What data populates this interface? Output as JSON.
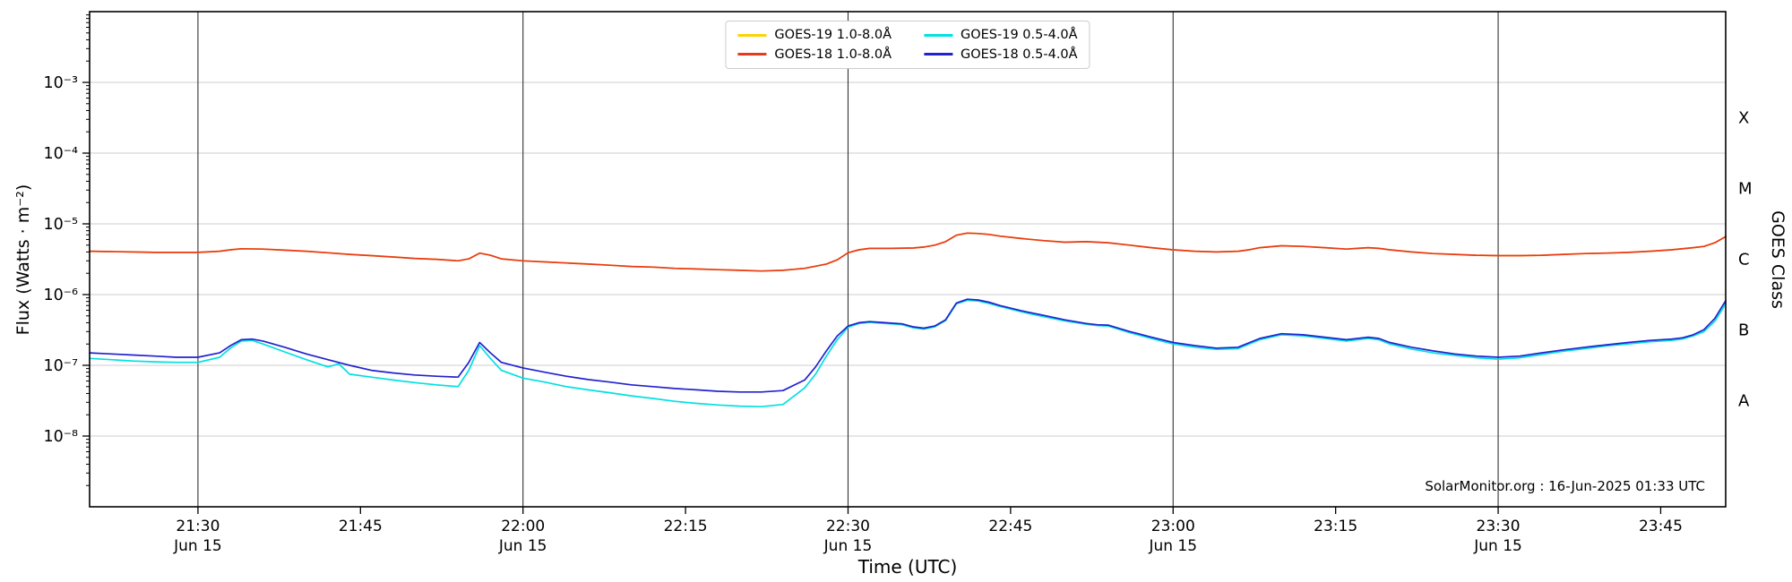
{
  "attribution": "SolarMonitor.org : 16-Jun-2025 01:33 UTC",
  "chart_data": {
    "type": "line",
    "xlabel": "Time (UTC)",
    "ylabel": "Flux (Watts · m⁻²)",
    "ylabel_right": "GOES Class",
    "x_unit": "minutes after 21:20 UTC, Jun 15",
    "x_range_minutes": [
      0,
      151
    ],
    "y_exponent_range": [
      -9,
      -2
    ],
    "y_scale": "log",
    "grid": "horizontal decade lines + vertical half-hour lines",
    "legend_position": "top center",
    "y_ticks": [
      {
        "exp": -3,
        "label": "10⁻³"
      },
      {
        "exp": -4,
        "label": "10⁻⁴"
      },
      {
        "exp": -5,
        "label": "10⁻⁵"
      },
      {
        "exp": -6,
        "label": "10⁻⁶"
      },
      {
        "exp": -7,
        "label": "10⁻⁷"
      },
      {
        "exp": -8,
        "label": "10⁻⁸"
      }
    ],
    "goes_class_labels": [
      {
        "label": "X",
        "exp": -3.5
      },
      {
        "label": "M",
        "exp": -4.5
      },
      {
        "label": "C",
        "exp": -5.5
      },
      {
        "label": "B",
        "exp": -6.5
      },
      {
        "label": "A",
        "exp": -7.5
      }
    ],
    "x_ticks": [
      {
        "t": 10,
        "label": "21:30",
        "date": "Jun 15"
      },
      {
        "t": 25,
        "label": "21:45"
      },
      {
        "t": 40,
        "label": "22:00",
        "date": "Jun 15"
      },
      {
        "t": 55,
        "label": "22:15"
      },
      {
        "t": 70,
        "label": "22:30",
        "date": "Jun 15"
      },
      {
        "t": 85,
        "label": "22:45"
      },
      {
        "t": 100,
        "label": "23:00",
        "date": "Jun 15"
      },
      {
        "t": 115,
        "label": "23:15"
      },
      {
        "t": 130,
        "label": "23:30",
        "date": "Jun 15"
      },
      {
        "t": 145,
        "label": "23:45"
      }
    ],
    "colors": {
      "gridline": "#cccccc",
      "date_line": "#333333",
      "axis": "#000000"
    },
    "series": [
      {
        "id": "goes19-long",
        "name": "GOES-19 1.0-8.0Å",
        "color": "#ffd300",
        "scale": 1e-06,
        "t": [
          0,
          2,
          4,
          6,
          8,
          10,
          12,
          13,
          14,
          16,
          18,
          20,
          22,
          24,
          26,
          28,
          30,
          32,
          34,
          35,
          36,
          37,
          38,
          40,
          42,
          44,
          46,
          48,
          50,
          52,
          54,
          56,
          58,
          60,
          62,
          64,
          66,
          68,
          69,
          70,
          71,
          72,
          74,
          76,
          77,
          78,
          79,
          80,
          81,
          82,
          83,
          84,
          86,
          88,
          90,
          92,
          94,
          96,
          98,
          100,
          102,
          104,
          106,
          107,
          108,
          110,
          112,
          114,
          116,
          117,
          118,
          119,
          120,
          122,
          124,
          126,
          128,
          130,
          132,
          134,
          136,
          138,
          140,
          142,
          144,
          146,
          148,
          149,
          150,
          151
        ],
        "values": [
          4.1,
          4.05,
          4.0,
          3.95,
          3.95,
          3.95,
          4.1,
          4.3,
          4.45,
          4.4,
          4.25,
          4.1,
          3.9,
          3.7,
          3.55,
          3.4,
          3.25,
          3.15,
          3.0,
          3.2,
          3.85,
          3.6,
          3.2,
          3.0,
          2.9,
          2.8,
          2.7,
          2.6,
          2.5,
          2.45,
          2.35,
          2.3,
          2.25,
          2.2,
          2.15,
          2.2,
          2.35,
          2.7,
          3.1,
          3.9,
          4.3,
          4.5,
          4.5,
          4.55,
          4.7,
          5.0,
          5.6,
          6.9,
          7.4,
          7.3,
          7.1,
          6.7,
          6.2,
          5.8,
          5.5,
          5.6,
          5.4,
          5.0,
          4.6,
          4.3,
          4.1,
          4.0,
          4.1,
          4.3,
          4.6,
          4.9,
          4.8,
          4.6,
          4.4,
          4.5,
          4.6,
          4.5,
          4.3,
          4.0,
          3.8,
          3.7,
          3.6,
          3.55,
          3.55,
          3.6,
          3.7,
          3.8,
          3.85,
          3.95,
          4.1,
          4.3,
          4.6,
          4.8,
          5.4,
          6.6
        ]
      },
      {
        "id": "goes18-long",
        "name": "GOES-18 1.0-8.0Å",
        "color": "#e8391a",
        "scale": 1e-06,
        "t": [
          0,
          2,
          4,
          6,
          8,
          10,
          12,
          13,
          14,
          16,
          18,
          20,
          22,
          24,
          26,
          28,
          30,
          32,
          34,
          35,
          36,
          37,
          38,
          40,
          42,
          44,
          46,
          48,
          50,
          52,
          54,
          56,
          58,
          60,
          62,
          64,
          66,
          68,
          69,
          70,
          71,
          72,
          74,
          76,
          77,
          78,
          79,
          80,
          81,
          82,
          83,
          84,
          86,
          88,
          90,
          92,
          94,
          96,
          98,
          100,
          102,
          104,
          106,
          107,
          108,
          110,
          112,
          114,
          116,
          117,
          118,
          119,
          120,
          122,
          124,
          126,
          128,
          130,
          132,
          134,
          136,
          138,
          140,
          142,
          144,
          146,
          148,
          149,
          150,
          151
        ],
        "values": [
          4.1,
          4.05,
          4.0,
          3.95,
          3.95,
          3.95,
          4.1,
          4.3,
          4.45,
          4.4,
          4.25,
          4.1,
          3.9,
          3.7,
          3.55,
          3.4,
          3.25,
          3.15,
          3.0,
          3.2,
          3.85,
          3.6,
          3.2,
          3.0,
          2.9,
          2.8,
          2.7,
          2.6,
          2.5,
          2.45,
          2.35,
          2.3,
          2.25,
          2.2,
          2.15,
          2.2,
          2.35,
          2.7,
          3.1,
          3.9,
          4.3,
          4.5,
          4.5,
          4.55,
          4.7,
          5.0,
          5.6,
          6.9,
          7.4,
          7.3,
          7.1,
          6.7,
          6.2,
          5.8,
          5.5,
          5.6,
          5.4,
          5.0,
          4.6,
          4.3,
          4.1,
          4.0,
          4.1,
          4.3,
          4.6,
          4.9,
          4.8,
          4.6,
          4.4,
          4.5,
          4.6,
          4.5,
          4.3,
          4.0,
          3.8,
          3.7,
          3.6,
          3.55,
          3.55,
          3.6,
          3.7,
          3.8,
          3.85,
          3.95,
          4.1,
          4.3,
          4.6,
          4.8,
          5.4,
          6.6
        ]
      },
      {
        "id": "goes19-short",
        "name": "GOES-19 0.5-4.0Å",
        "color": "#00e0e3",
        "scale": 1e-07,
        "t": [
          0,
          2,
          4,
          6,
          8,
          10,
          12,
          13,
          14,
          15,
          16,
          18,
          20,
          22,
          23,
          24,
          26,
          28,
          30,
          32,
          34,
          35,
          36,
          37,
          38,
          40,
          42,
          44,
          46,
          48,
          50,
          52,
          54,
          56,
          58,
          60,
          62,
          64,
          66,
          67,
          68,
          69,
          70,
          71,
          72,
          73,
          74,
          75,
          76,
          77,
          78,
          79,
          80,
          81,
          82,
          83,
          84,
          86,
          88,
          90,
          92,
          93,
          94,
          96,
          98,
          100,
          102,
          104,
          106,
          108,
          110,
          112,
          114,
          116,
          118,
          119,
          120,
          122,
          124,
          126,
          128,
          130,
          132,
          134,
          136,
          138,
          140,
          142,
          144,
          146,
          147,
          148,
          149,
          150,
          151
        ],
        "values": [
          1.25,
          1.2,
          1.15,
          1.12,
          1.1,
          1.1,
          1.3,
          1.75,
          2.2,
          2.25,
          2.0,
          1.55,
          1.2,
          0.95,
          1.05,
          0.75,
          0.68,
          0.62,
          0.57,
          0.53,
          0.5,
          0.85,
          1.9,
          1.25,
          0.85,
          0.66,
          0.58,
          0.5,
          0.45,
          0.41,
          0.37,
          0.34,
          0.31,
          0.29,
          0.275,
          0.265,
          0.26,
          0.28,
          0.48,
          0.75,
          1.35,
          2.3,
          3.45,
          3.9,
          4.05,
          3.95,
          3.85,
          3.75,
          3.4,
          3.25,
          3.5,
          4.3,
          7.4,
          8.3,
          8.1,
          7.5,
          6.8,
          5.7,
          4.9,
          4.25,
          3.8,
          3.65,
          3.6,
          2.9,
          2.4,
          2.0,
          1.8,
          1.68,
          1.72,
          2.3,
          2.7,
          2.6,
          2.4,
          2.2,
          2.4,
          2.3,
          2.0,
          1.7,
          1.5,
          1.38,
          1.28,
          1.22,
          1.28,
          1.42,
          1.58,
          1.72,
          1.88,
          2.0,
          2.15,
          2.25,
          2.35,
          2.6,
          3.0,
          4.2,
          7.4
        ]
      },
      {
        "id": "goes18-short",
        "name": "GOES-18 0.5-4.0Å",
        "color": "#2222cf",
        "scale": 1e-07,
        "t": [
          0,
          2,
          4,
          6,
          8,
          10,
          12,
          13,
          14,
          15,
          16,
          18,
          20,
          22,
          24,
          26,
          28,
          30,
          32,
          34,
          35,
          36,
          37,
          38,
          40,
          42,
          44,
          46,
          48,
          50,
          52,
          54,
          56,
          58,
          60,
          62,
          64,
          66,
          67,
          68,
          69,
          70,
          71,
          72,
          73,
          74,
          75,
          76,
          77,
          78,
          79,
          80,
          81,
          82,
          83,
          84,
          86,
          88,
          90,
          92,
          93,
          94,
          96,
          98,
          100,
          102,
          104,
          106,
          108,
          110,
          112,
          114,
          116,
          118,
          119,
          120,
          122,
          124,
          126,
          128,
          130,
          132,
          134,
          136,
          138,
          140,
          142,
          144,
          146,
          147,
          148,
          149,
          150,
          151
        ],
        "values": [
          1.5,
          1.45,
          1.4,
          1.35,
          1.3,
          1.3,
          1.5,
          1.9,
          2.3,
          2.35,
          2.2,
          1.8,
          1.45,
          1.2,
          1.0,
          0.85,
          0.78,
          0.73,
          0.7,
          0.68,
          1.1,
          2.1,
          1.5,
          1.1,
          0.92,
          0.8,
          0.7,
          0.63,
          0.58,
          0.53,
          0.5,
          0.47,
          0.45,
          0.43,
          0.42,
          0.42,
          0.44,
          0.62,
          0.95,
          1.6,
          2.6,
          3.6,
          4.0,
          4.15,
          4.05,
          3.95,
          3.85,
          3.5,
          3.35,
          3.6,
          4.4,
          7.6,
          8.6,
          8.4,
          7.8,
          7.0,
          5.9,
          5.1,
          4.4,
          3.9,
          3.75,
          3.7,
          3.0,
          2.5,
          2.1,
          1.9,
          1.75,
          1.8,
          2.4,
          2.8,
          2.7,
          2.5,
          2.3,
          2.5,
          2.4,
          2.1,
          1.8,
          1.6,
          1.45,
          1.35,
          1.3,
          1.35,
          1.5,
          1.65,
          1.8,
          1.95,
          2.1,
          2.25,
          2.35,
          2.45,
          2.7,
          3.2,
          4.6,
          8.2
        ]
      }
    ]
  }
}
